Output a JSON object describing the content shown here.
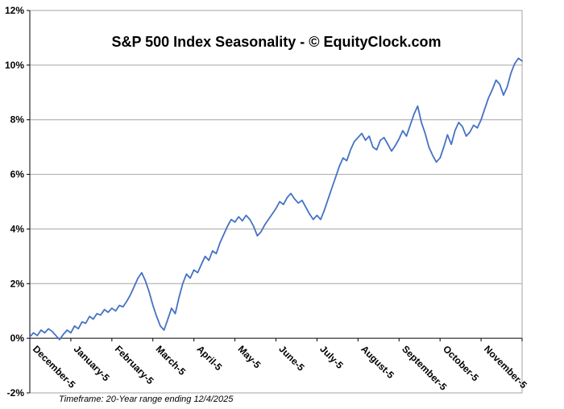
{
  "chart_data": {
    "type": "line",
    "title": "S&P 500 Index Seasonality - © EquityClock.com",
    "footer": "Timeframe: 20-Year range ending 12/4/2025",
    "line_color": "#4472C4",
    "grid_color": "#a6a6a6",
    "axis_color": "#000000",
    "background_color": "#ffffff",
    "legend": "none",
    "grid": true,
    "ylim": [
      -2,
      12
    ],
    "y_ticks": [
      -2,
      0,
      2,
      4,
      6,
      8,
      10,
      12
    ],
    "y_tick_labels": [
      "-2%",
      "0%",
      "2%",
      "4%",
      "6%",
      "8%",
      "10%",
      "12%"
    ],
    "x_tick_labels": [
      "December-5",
      "January-5",
      "February-5",
      "March-5",
      "April-5",
      "May-5",
      "June-5",
      "July-5",
      "August-5",
      "September-5",
      "October-5",
      "November-5"
    ],
    "series": [
      {
        "values": [
          0.05,
          0.2,
          0.1,
          0.3,
          0.2,
          0.35,
          0.25,
          0.1,
          -0.05,
          0.15,
          0.3,
          0.2,
          0.45,
          0.35,
          0.6,
          0.55,
          0.8,
          0.7,
          0.9,
          0.85,
          1.05,
          0.95,
          1.1,
          1.0,
          1.2,
          1.15,
          1.35,
          1.6,
          1.9,
          2.2,
          2.4,
          2.1,
          1.7,
          1.2,
          0.8,
          0.45,
          0.3,
          0.7,
          1.1,
          0.9,
          1.5,
          2.0,
          2.35,
          2.2,
          2.5,
          2.4,
          2.7,
          3.0,
          2.85,
          3.2,
          3.1,
          3.5,
          3.8,
          4.1,
          4.35,
          4.25,
          4.45,
          4.3,
          4.5,
          4.35,
          4.1,
          3.75,
          3.9,
          4.15,
          4.35,
          4.55,
          4.75,
          5.0,
          4.9,
          5.15,
          5.3,
          5.1,
          4.95,
          5.05,
          4.8,
          4.55,
          4.35,
          4.5,
          4.35,
          4.7,
          5.1,
          5.5,
          5.9,
          6.3,
          6.6,
          6.5,
          6.9,
          7.2,
          7.35,
          7.5,
          7.25,
          7.4,
          7.0,
          6.9,
          7.25,
          7.35,
          7.1,
          6.85,
          7.05,
          7.3,
          7.6,
          7.4,
          7.8,
          8.2,
          8.5,
          7.9,
          7.5,
          7.0,
          6.7,
          6.45,
          6.6,
          7.0,
          7.45,
          7.1,
          7.6,
          7.9,
          7.75,
          7.4,
          7.55,
          7.8,
          7.7,
          8.0,
          8.4,
          8.8,
          9.1,
          9.45,
          9.3,
          8.9,
          9.2,
          9.7,
          10.05,
          10.25,
          10.15
        ]
      }
    ]
  }
}
